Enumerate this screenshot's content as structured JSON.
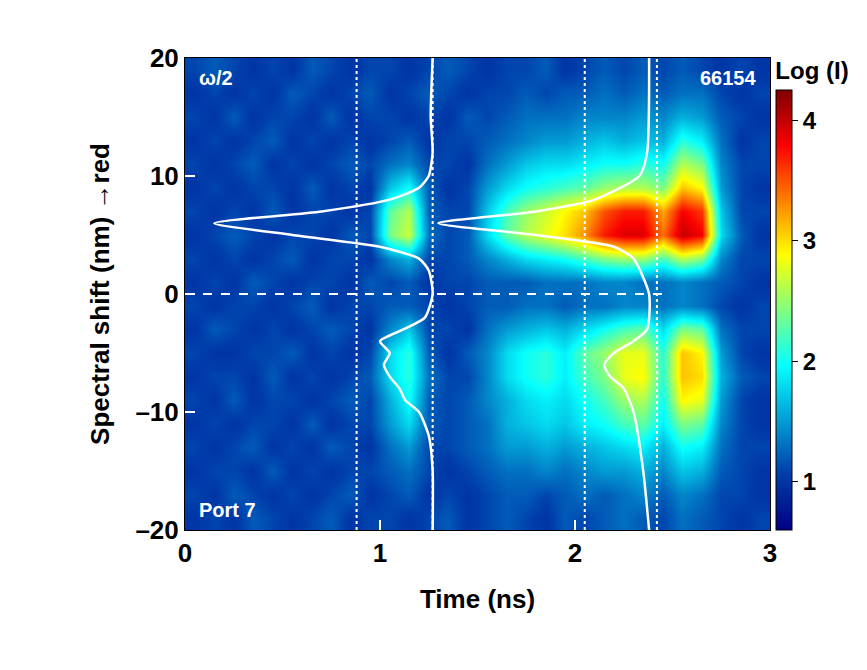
{
  "chart_data": {
    "type": "heatmap",
    "x_label": "Time (ns)",
    "y_label": "Spectral shift (nm) →red",
    "colorbar_title": "Log (I)",
    "annotations": [
      "ω/2",
      "66154",
      "Port 7"
    ],
    "xlim": [
      0,
      3
    ],
    "ylim": [
      -20,
      20
    ],
    "xticks": [
      0,
      1,
      2,
      3
    ],
    "yticks": [
      {
        "value": -20,
        "label": "–20"
      },
      {
        "value": -10,
        "label": "–10"
      },
      0,
      10,
      20
    ],
    "zlim": [
      0.6,
      4.25
    ],
    "colorbar_ticks": [
      1,
      2,
      3,
      4
    ],
    "x": [
      0.05,
      0.15,
      0.25,
      0.35,
      0.45,
      0.55,
      0.65,
      0.75,
      0.85,
      0.95,
      1.05,
      1.15,
      1.25,
      1.35,
      1.45,
      1.55,
      1.65,
      1.75,
      1.85,
      1.95,
      2.05,
      2.15,
      2.25,
      2.35,
      2.45,
      2.55,
      2.65,
      2.75,
      2.85,
      2.95
    ],
    "y": [
      -19,
      -17,
      -15,
      -13,
      -11,
      -9,
      -7,
      -5,
      -3,
      -1,
      1,
      3,
      5,
      7,
      9,
      11,
      13,
      15,
      17,
      19
    ],
    "z": [
      [
        1.0,
        1.1,
        1.0,
        1.2,
        1.1,
        1.0,
        1.1,
        1.2,
        1.0,
        1.1,
        1.1,
        1.0,
        1.1,
        1.2,
        1.0,
        1.1,
        1.2,
        1.1,
        1.0,
        1.2,
        1.1,
        1.2,
        1.3,
        1.2,
        1.1,
        1.3,
        1.2,
        1.1,
        1.0,
        1.1
      ],
      [
        1.1,
        1.0,
        1.2,
        1.1,
        1.0,
        1.1,
        1.0,
        1.1,
        1.2,
        1.0,
        1.1,
        1.2,
        1.0,
        1.1,
        1.0,
        1.1,
        1.2,
        1.2,
        1.1,
        1.2,
        1.3,
        1.2,
        1.3,
        1.4,
        1.2,
        1.4,
        1.3,
        1.1,
        1.1,
        1.0
      ],
      [
        1.0,
        1.1,
        1.1,
        1.0,
        1.2,
        1.0,
        1.1,
        1.0,
        1.1,
        1.1,
        1.2,
        1.3,
        1.1,
        1.0,
        1.1,
        1.2,
        1.3,
        1.3,
        1.4,
        1.3,
        1.4,
        1.5,
        1.5,
        1.6,
        1.4,
        1.7,
        1.6,
        1.2,
        1.1,
        1.0
      ],
      [
        1.1,
        1.0,
        1.1,
        1.2,
        1.0,
        1.1,
        1.0,
        1.2,
        1.1,
        1.0,
        1.3,
        1.5,
        1.1,
        1.1,
        1.2,
        1.3,
        1.5,
        1.5,
        1.6,
        1.5,
        1.6,
        1.7,
        1.8,
        1.9,
        1.6,
        2.0,
        1.9,
        1.3,
        1.1,
        1.1
      ],
      [
        1.0,
        1.1,
        1.0,
        1.1,
        1.1,
        1.0,
        1.2,
        1.0,
        1.1,
        1.1,
        1.5,
        1.8,
        1.2,
        1.1,
        1.2,
        1.3,
        1.6,
        1.7,
        1.8,
        1.7,
        1.9,
        2.0,
        2.2,
        2.3,
        1.9,
        2.4,
        2.3,
        1.4,
        1.1,
        1.0
      ],
      [
        1.1,
        1.0,
        1.2,
        1.0,
        1.1,
        1.1,
        1.0,
        1.1,
        1.2,
        1.1,
        1.6,
        2.0,
        1.2,
        1.1,
        1.2,
        1.4,
        1.6,
        1.8,
        1.9,
        1.8,
        2.0,
        2.2,
        2.5,
        2.6,
        2.0,
        2.9,
        2.8,
        1.5,
        1.1,
        1.0
      ],
      [
        1.0,
        1.1,
        1.1,
        1.0,
        1.2,
        1.0,
        1.1,
        1.0,
        1.1,
        1.2,
        1.8,
        2.1,
        1.3,
        1.1,
        1.1,
        1.4,
        1.8,
        2.0,
        2.1,
        1.9,
        2.2,
        2.4,
        2.8,
        2.9,
        2.1,
        3.1,
        3.0,
        1.6,
        1.2,
        1.1
      ],
      [
        1.1,
        1.0,
        1.0,
        1.1,
        1.1,
        1.2,
        1.0,
        1.1,
        1.0,
        1.1,
        1.8,
        2.1,
        1.2,
        1.0,
        1.2,
        1.4,
        1.8,
        2.0,
        2.1,
        1.9,
        2.3,
        2.5,
        2.8,
        2.8,
        2.1,
        3.1,
        2.9,
        1.5,
        1.1,
        1.0
      ],
      [
        1.0,
        1.2,
        1.1,
        1.0,
        1.1,
        1.0,
        1.1,
        1.2,
        1.1,
        1.0,
        1.4,
        1.7,
        1.1,
        1.1,
        1.0,
        1.3,
        1.5,
        1.6,
        1.7,
        1.6,
        1.8,
        2.0,
        2.2,
        2.3,
        1.8,
        2.4,
        2.3,
        1.3,
        1.1,
        1.1
      ],
      [
        1.1,
        1.0,
        1.1,
        1.1,
        1.0,
        1.1,
        1.2,
        1.0,
        1.1,
        1.1,
        1.2,
        1.2,
        1.1,
        1.0,
        1.1,
        1.2,
        1.2,
        1.3,
        1.3,
        1.2,
        1.3,
        1.3,
        1.4,
        1.4,
        1.3,
        1.4,
        1.3,
        1.1,
        1.0,
        1.1
      ],
      [
        1.0,
        1.1,
        1.0,
        1.2,
        1.1,
        1.0,
        1.1,
        1.1,
        1.0,
        1.2,
        1.1,
        1.2,
        1.0,
        1.1,
        1.1,
        1.2,
        1.2,
        1.2,
        1.3,
        1.3,
        1.3,
        1.4,
        1.4,
        1.3,
        1.3,
        1.4,
        1.3,
        1.2,
        1.1,
        1.0
      ],
      [
        1.1,
        1.0,
        1.1,
        1.0,
        1.1,
        1.2,
        1.0,
        1.1,
        1.1,
        1.0,
        1.4,
        1.6,
        1.1,
        1.1,
        1.2,
        1.4,
        1.6,
        1.8,
        1.9,
        2.0,
        2.2,
        2.4,
        2.5,
        2.5,
        2.2,
        2.6,
        2.4,
        1.4,
        1.1,
        1.1
      ],
      [
        1.0,
        1.1,
        1.2,
        1.1,
        1.0,
        1.1,
        1.1,
        1.0,
        1.2,
        1.1,
        2.4,
        2.7,
        1.3,
        1.1,
        1.2,
        1.8,
        2.3,
        2.6,
        2.8,
        3.0,
        3.3,
        3.7,
        3.9,
        3.9,
        3.4,
        4.0,
        3.8,
        1.8,
        1.2,
        1.0
      ],
      [
        1.1,
        1.0,
        1.1,
        1.0,
        1.2,
        1.0,
        1.1,
        1.1,
        1.0,
        1.1,
        2.3,
        2.6,
        1.2,
        1.1,
        1.1,
        1.7,
        2.2,
        2.5,
        2.7,
        2.9,
        3.1,
        3.5,
        3.7,
        3.7,
        3.2,
        3.8,
        3.6,
        1.7,
        1.1,
        1.1
      ],
      [
        1.0,
        1.1,
        1.0,
        1.1,
        1.1,
        1.0,
        1.2,
        1.0,
        1.1,
        1.0,
        1.7,
        2.0,
        1.2,
        1.0,
        1.1,
        1.5,
        1.8,
        2.0,
        2.1,
        2.2,
        2.3,
        2.5,
        2.6,
        2.6,
        2.4,
        3.1,
        2.9,
        1.5,
        1.1,
        1.0
      ],
      [
        1.1,
        1.0,
        1.1,
        1.2,
        1.0,
        1.1,
        1.0,
        1.1,
        1.2,
        1.1,
        1.3,
        1.4,
        1.1,
        1.1,
        1.0,
        1.3,
        1.5,
        1.7,
        1.8,
        1.8,
        1.9,
        2.0,
        2.0,
        2.1,
        2.0,
        2.6,
        2.4,
        1.4,
        1.1,
        1.1
      ],
      [
        1.0,
        1.1,
        1.0,
        1.1,
        1.2,
        1.0,
        1.1,
        1.0,
        1.1,
        1.0,
        1.1,
        1.2,
        1.0,
        1.1,
        1.1,
        1.2,
        1.3,
        1.4,
        1.5,
        1.5,
        1.6,
        1.7,
        1.6,
        1.7,
        1.6,
        2.1,
        1.9,
        1.3,
        1.0,
        1.1
      ],
      [
        1.1,
        1.0,
        1.2,
        1.0,
        1.1,
        1.1,
        1.0,
        1.2,
        1.0,
        1.1,
        1.1,
        1.0,
        1.1,
        1.0,
        1.2,
        1.1,
        1.2,
        1.3,
        1.3,
        1.3,
        1.4,
        1.4,
        1.4,
        1.5,
        1.4,
        1.6,
        1.5,
        1.2,
        1.1,
        1.0
      ],
      [
        1.0,
        1.1,
        1.0,
        1.1,
        1.0,
        1.2,
        1.1,
        1.0,
        1.1,
        1.2,
        1.0,
        1.1,
        1.2,
        1.1,
        1.0,
        1.1,
        1.1,
        1.2,
        1.1,
        1.2,
        1.2,
        1.3,
        1.2,
        1.3,
        1.2,
        1.3,
        1.3,
        1.1,
        1.0,
        1.1
      ],
      [
        1.1,
        1.2,
        1.1,
        1.0,
        1.1,
        1.0,
        1.2,
        1.1,
        1.0,
        1.1,
        1.1,
        1.0,
        1.1,
        1.2,
        1.1,
        1.0,
        1.1,
        1.1,
        1.2,
        1.0,
        1.1,
        1.2,
        1.1,
        1.2,
        1.1,
        1.2,
        1.1,
        1.0,
        1.1,
        1.0
      ]
    ],
    "lineouts": [
      {
        "y": [
          20,
          15,
          12,
          10,
          9,
          8,
          7,
          6,
          5,
          4,
          3,
          2,
          0,
          -2,
          -3,
          -4,
          -5,
          -6,
          -7,
          -8,
          -9,
          -10,
          -12,
          -15,
          -20
        ],
        "x": [
          1.27,
          1.26,
          1.27,
          1.25,
          1.2,
          1.05,
          0.7,
          0.15,
          0.55,
          1.0,
          1.2,
          1.25,
          1.27,
          1.23,
          1.12,
          1.0,
          1.05,
          1.02,
          1.05,
          1.1,
          1.13,
          1.2,
          1.25,
          1.27,
          1.27
        ]
      },
      {
        "y": [
          20,
          12,
          10,
          8,
          7,
          6,
          5,
          4,
          3,
          0,
          -3,
          -4,
          -5,
          -6,
          -7,
          -8,
          -10,
          -15,
          -20
        ],
        "x": [
          2.38,
          2.37,
          2.33,
          2.1,
          1.8,
          1.3,
          1.8,
          2.2,
          2.3,
          2.38,
          2.37,
          2.3,
          2.2,
          2.15,
          2.18,
          2.25,
          2.3,
          2.35,
          2.38
        ]
      }
    ],
    "window_lines": [
      0.88,
      1.27,
      2.05,
      2.42
    ],
    "zero_line": {
      "y": 0,
      "x": [
        0,
        2.45
      ]
    }
  }
}
